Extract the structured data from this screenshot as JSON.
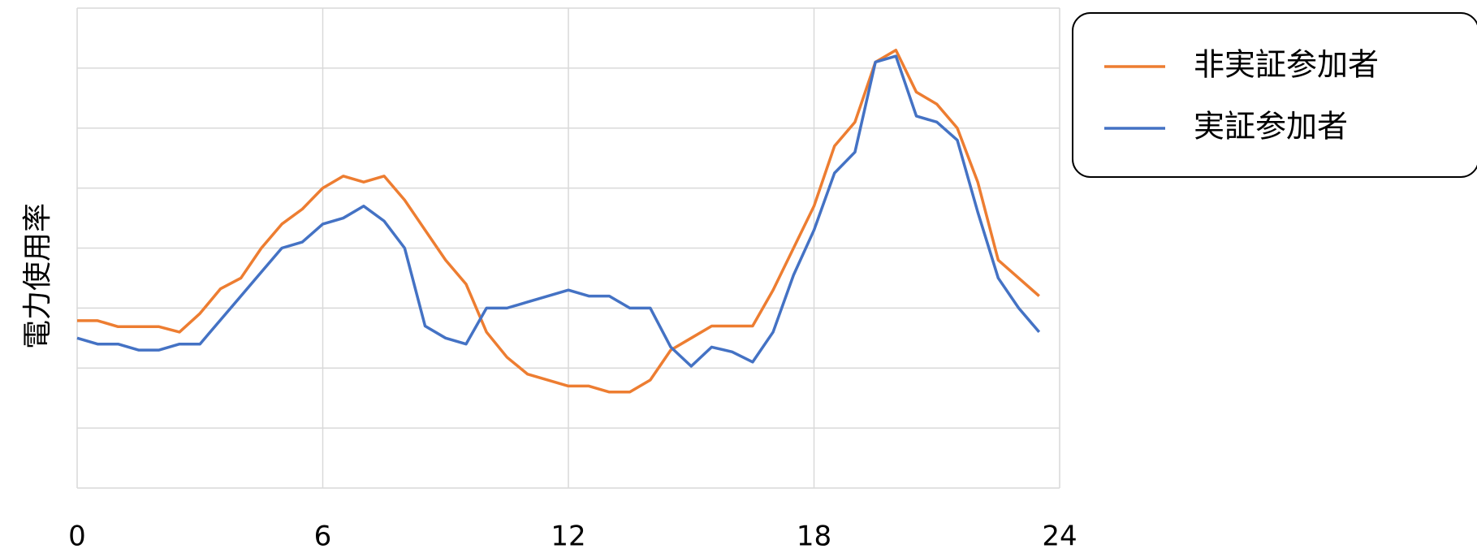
{
  "chart_data": {
    "type": "line",
    "y_label": "電力使用率",
    "x": [
      0,
      0.5,
      1,
      1.5,
      2,
      2.5,
      3,
      3.5,
      4,
      4.5,
      5,
      5.5,
      6,
      6.5,
      7,
      7.5,
      8,
      8.5,
      9,
      9.5,
      10,
      10.5,
      11,
      11.5,
      12,
      12.5,
      13,
      13.5,
      14,
      14.5,
      15,
      15.5,
      16,
      16.5,
      17,
      17.5,
      18,
      18.5,
      19,
      19.5,
      20,
      20.5,
      21,
      21.5,
      22,
      22.5,
      23,
      23.5
    ],
    "series": [
      {
        "name": "非実証参加者",
        "color": "#ed7d31",
        "values": [
          2.79,
          2.79,
          2.69,
          2.69,
          2.69,
          2.6,
          2.91,
          3.32,
          3.5,
          4.0,
          4.4,
          4.65,
          5.0,
          5.2,
          5.1,
          5.2,
          4.8,
          4.3,
          3.8,
          3.4,
          2.6,
          2.18,
          1.9,
          1.8,
          1.7,
          1.7,
          1.6,
          1.6,
          1.8,
          2.3,
          2.5,
          2.7,
          2.7,
          2.7,
          3.3,
          4.0,
          4.7,
          5.7,
          6.1,
          7.1,
          7.3,
          6.6,
          6.4,
          6.0,
          5.1,
          3.8,
          3.5,
          3.2
        ]
      },
      {
        "name": "実証参加者",
        "color": "#4472c4",
        "values": [
          2.5,
          2.4,
          2.4,
          2.3,
          2.3,
          2.4,
          2.4,
          2.8,
          3.2,
          3.6,
          4.0,
          4.1,
          4.4,
          4.5,
          4.7,
          4.45,
          4.0,
          2.7,
          2.5,
          2.4,
          3.0,
          3.0,
          3.1,
          3.2,
          3.3,
          3.2,
          3.2,
          3.0,
          3.0,
          2.35,
          2.03,
          2.35,
          2.27,
          2.1,
          2.6,
          3.55,
          4.3,
          5.25,
          5.6,
          7.1,
          7.2,
          6.2,
          6.1,
          5.8,
          4.6,
          3.5,
          3.0,
          2.6
        ]
      }
    ],
    "xlim": [
      0,
      24
    ],
    "xticks": [
      0,
      6,
      12,
      18,
      24
    ],
    "ylim": [
      0,
      8
    ],
    "yticks": [
      0,
      1,
      2,
      3,
      4,
      5,
      6,
      7,
      8
    ],
    "grid": true,
    "legend": "upper right"
  }
}
